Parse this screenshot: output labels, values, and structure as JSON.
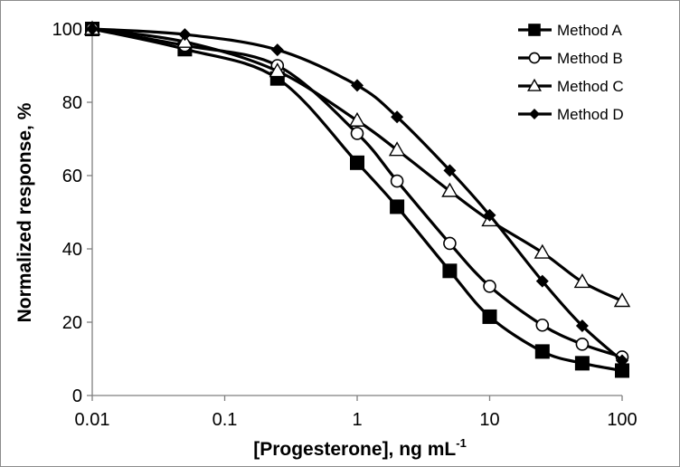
{
  "chart_data": {
    "type": "line",
    "title": "",
    "xlabel": "[Progesterone], ng mL",
    "xlabel_superscript": "-1",
    "ylabel": "Normalized response, %",
    "xscale": "log",
    "xlim": [
      0.01,
      100
    ],
    "ylim": [
      0,
      100
    ],
    "xticks": [
      0.01,
      0.1,
      1,
      10,
      100
    ],
    "xtick_labels": [
      "0.01",
      "0.1",
      "1",
      "10",
      "100"
    ],
    "yticks": [
      0,
      20,
      40,
      60,
      80,
      100
    ],
    "ytick_labels": [
      "0",
      "20",
      "40",
      "60",
      "80",
      "100"
    ],
    "grid": false,
    "legend_position": "top-right",
    "x": [
      0.01,
      0.05,
      0.25,
      1,
      2,
      5,
      10,
      25,
      50,
      100
    ],
    "series": [
      {
        "name": "Method A",
        "marker": "filled-square",
        "values": [
          100,
          94.5,
          86.5,
          63.5,
          51.5,
          34,
          21.5,
          12,
          8.8,
          6.8
        ]
      },
      {
        "name": "Method B",
        "marker": "open-circle",
        "values": [
          100,
          95.5,
          90,
          71.5,
          58.5,
          41.5,
          29.8,
          19.2,
          14,
          10.5
        ]
      },
      {
        "name": "Method C",
        "marker": "open-triangle",
        "values": [
          100,
          96.5,
          88.5,
          75,
          67,
          55.8,
          47.8,
          39,
          31,
          25.8
        ]
      },
      {
        "name": "Method D",
        "marker": "filled-diamond",
        "values": [
          100,
          98.5,
          94.3,
          84.6,
          76,
          61.4,
          49.2,
          31.2,
          19,
          9.5
        ]
      }
    ]
  }
}
